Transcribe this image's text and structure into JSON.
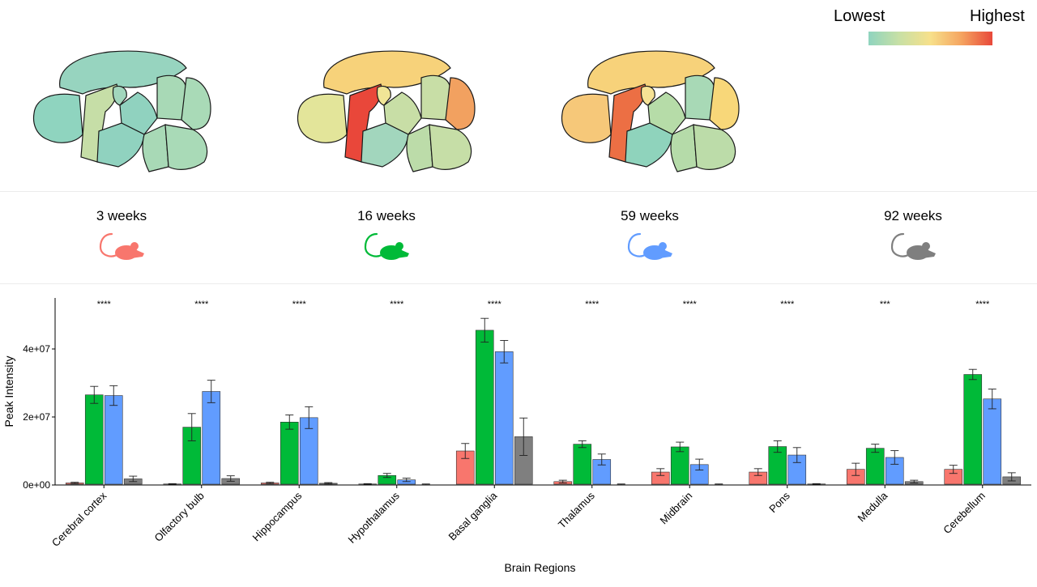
{
  "colorscale": {
    "low_label": "Lowest",
    "high_label": "Highest",
    "stops": [
      "#8fd4bf",
      "#c8e0a5",
      "#f7e08a",
      "#f5a460",
      "#e8483a"
    ]
  },
  "brains": [
    {
      "age": "3 weeks",
      "fills": {
        "olfactory": "#8fd4bf",
        "cortex": "#97d4bf",
        "striatum": "#c6dea7",
        "hippocampus": "#a2d6bd",
        "thalamus": "#90d2bf",
        "hypothalamus": "#90d2bf",
        "midbrain": "#a8d9b6",
        "cerebellum": "#a9dab7",
        "pons": "#a8d9b6",
        "medulla": "#a9dab7"
      }
    },
    {
      "age": "16 weeks",
      "fills": {
        "olfactory": "#e3e59a",
        "cortex": "#f7d27a",
        "striatum": "#e9473a",
        "hippocampus": "#f0e596",
        "thalamus": "#c8dea6",
        "hypothalamus": "#a2d6bd",
        "midbrain": "#c8dea6",
        "cerebellum": "#f2a160",
        "pons": "#bcdca9",
        "medulla": "#c6dea7"
      }
    },
    {
      "age": "59 weeks",
      "fills": {
        "olfactory": "#f6c879",
        "cortex": "#f7d27a",
        "striatum": "#ec6f44",
        "hippocampus": "#f6e295",
        "thalamus": "#b6dca8",
        "hypothalamus": "#8fd3bc",
        "midbrain": "#a8d9b6",
        "cerebellum": "#f8d779",
        "pons": "#b5dba9",
        "medulla": "#bcdca9"
      }
    },
    {
      "age": "92 weeks",
      "fills": {
        "olfactory": "#8fd4bf",
        "cortex": "#97d4bf",
        "striatum": "#d0e29b",
        "hippocampus": "#92d3bf",
        "thalamus": "#8fd3bf",
        "hypothalamus": "#8fd3bf",
        "midbrain": "#8fd3bf",
        "cerebellum": "#a0d6bb",
        "pons": "#8fd3bf",
        "medulla": "#8fd3bf"
      }
    }
  ],
  "groups": [
    {
      "label": "3 weeks",
      "color": "#f8766d"
    },
    {
      "label": "16 weeks",
      "color": "#00ba38"
    },
    {
      "label": "59 weeks",
      "color": "#619cff"
    },
    {
      "label": "92 weeks",
      "color": "#7f7f7f"
    }
  ],
  "chart_data": {
    "type": "bar",
    "title": "",
    "xlabel": "Brain Regions",
    "ylabel": "Peak Intensity",
    "ylim": [
      0,
      55000000
    ],
    "yticks": [
      0,
      20000000,
      40000000
    ],
    "ytick_labels": [
      "0e+00",
      "2e+07",
      "4e+07"
    ],
    "categories": [
      "Cerebral cortex",
      "Olfactory bulb",
      "Hippocampus",
      "Hypothalamus",
      "Basal ganglia",
      "Thalamus",
      "Midbrain",
      "Pons",
      "Medulla",
      "Cerebellum"
    ],
    "significance": [
      "****",
      "****",
      "****",
      "****",
      "****",
      "****",
      "****",
      "****",
      "***",
      "****"
    ],
    "series": [
      {
        "name": "3 weeks",
        "values": [
          600000,
          300000,
          600000,
          300000,
          10000000,
          1000000,
          3800000,
          3800000,
          4600000,
          4600000
        ],
        "errors": [
          200000,
          100000,
          200000,
          100000,
          2200000,
          400000,
          1000000,
          1000000,
          1800000,
          1200000
        ]
      },
      {
        "name": "16 weeks",
        "values": [
          26500000,
          17000000,
          18500000,
          2800000,
          45500000,
          12000000,
          11200000,
          11300000,
          10800000,
          32500000
        ],
        "errors": [
          2500000,
          4000000,
          2100000,
          600000,
          3500000,
          1000000,
          1400000,
          1700000,
          1200000,
          1500000
        ]
      },
      {
        "name": "59 weeks",
        "values": [
          26300000,
          27500000,
          19800000,
          1500000,
          39200000,
          7500000,
          6000000,
          8800000,
          8100000,
          25300000
        ],
        "errors": [
          2900000,
          3300000,
          3200000,
          500000,
          3300000,
          1600000,
          1600000,
          2200000,
          2000000,
          2900000
        ],
        "_note": ""
      },
      {
        "name": "92 weeks",
        "values": [
          1800000,
          1900000,
          500000,
          200000,
          14200000,
          200000,
          200000,
          300000,
          1000000,
          2400000
        ],
        "errors": [
          800000,
          800000,
          200000,
          100000,
          5500000,
          100000,
          100000,
          100000,
          400000,
          1200000
        ]
      }
    ]
  }
}
